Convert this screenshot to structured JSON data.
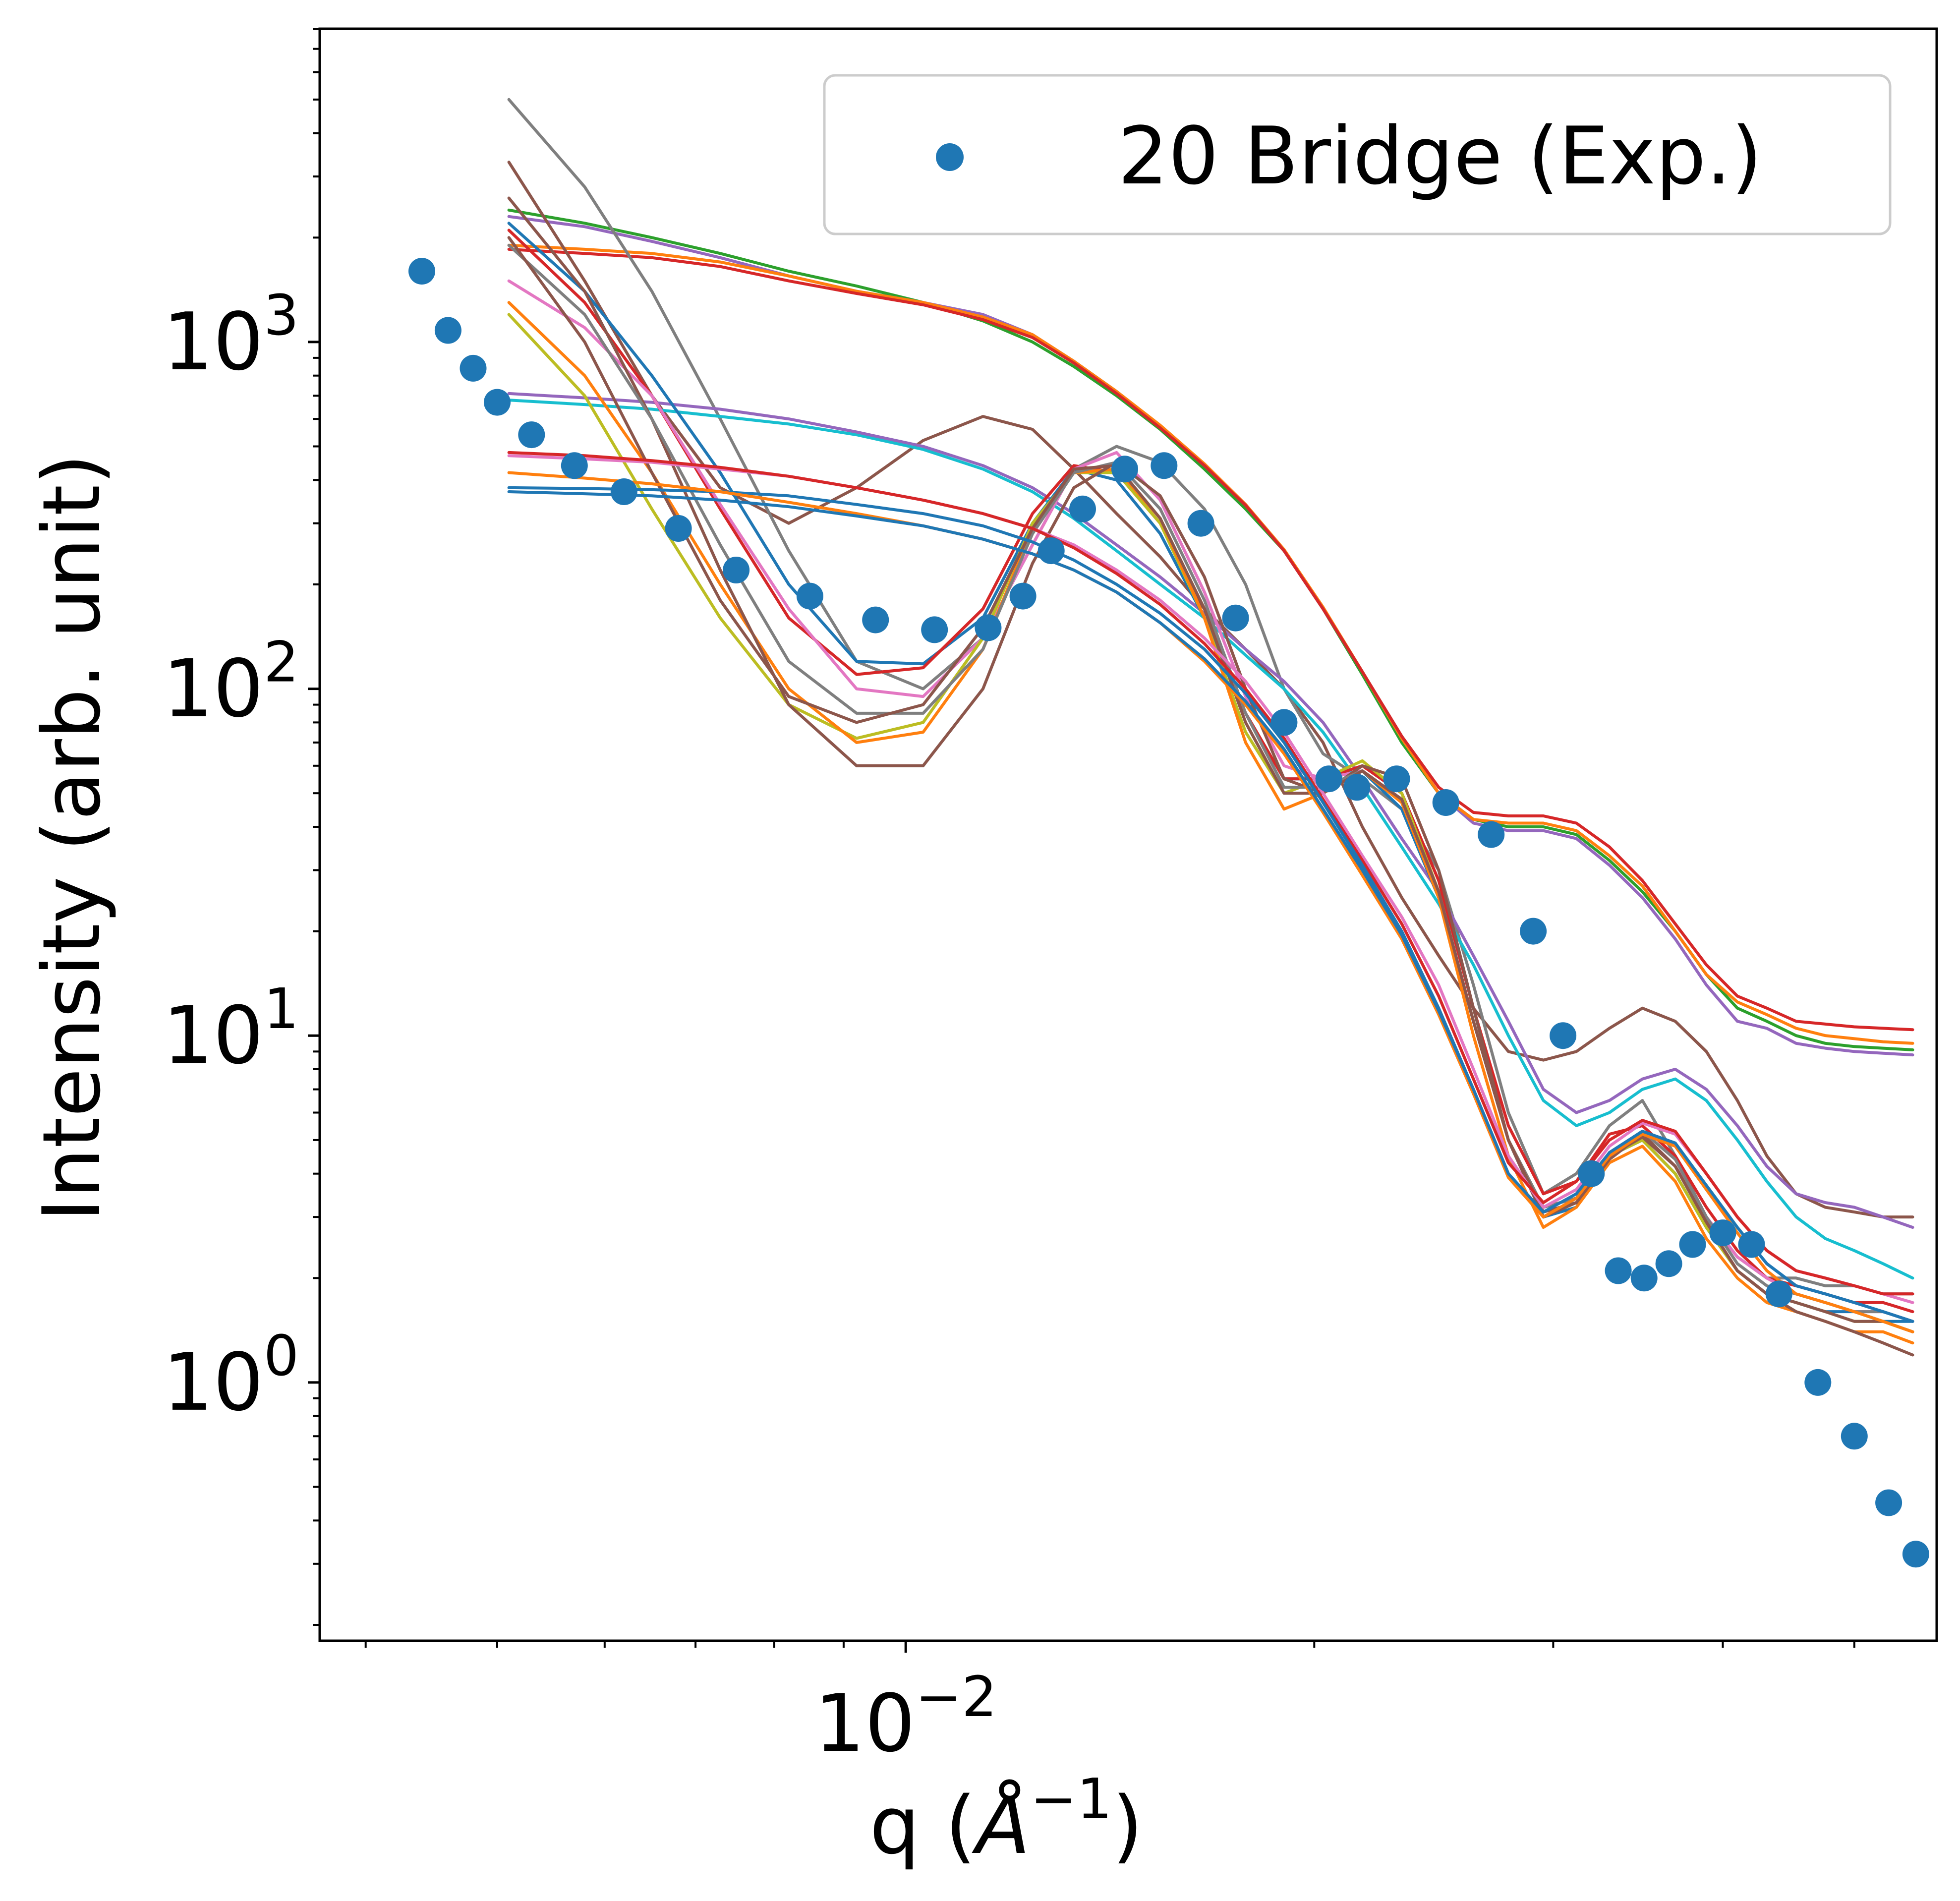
{
  "chart_data": {
    "type": "line",
    "title": "",
    "xlabel_main": "q (",
    "xlabel_unit": "Å",
    "xlabel_exp": "−1",
    "xlabel_close": ")",
    "ylabel": "Intensity (arb. unit)",
    "x_scale": "log",
    "y_scale": "log",
    "xlim": [
      0.0037,
      0.0575
    ],
    "ylim": [
      0.18,
      8000
    ],
    "x_major_ticks": [
      {
        "value": 0.01,
        "base": "10",
        "exp": "−2"
      }
    ],
    "y_major_ticks": [
      {
        "value": 1,
        "base": "10",
        "exp": "0"
      },
      {
        "value": 10,
        "base": "10",
        "exp": "1"
      },
      {
        "value": 100,
        "base": "10",
        "exp": "2"
      },
      {
        "value": 1000,
        "base": "10",
        "exp": "3"
      }
    ],
    "grid": false,
    "legend": {
      "position": "top-right",
      "entries": [
        "20 Bridge (Exp.)"
      ]
    },
    "experimental": {
      "name": "20 Bridge (Exp.)",
      "color": "#1f77b4",
      "x": [
        0.0044,
        0.0046,
        0.0048,
        0.005,
        0.0053,
        0.0057,
        0.0062,
        0.0068,
        0.0075,
        0.0085,
        0.0095,
        0.0105,
        0.0115,
        0.0122,
        0.0128,
        0.0135,
        0.0145,
        0.0155,
        0.0165,
        0.0175,
        0.019,
        0.0205,
        0.0215,
        0.023,
        0.025,
        0.027,
        0.029,
        0.0305,
        0.032,
        0.0335,
        0.035,
        0.0365,
        0.038,
        0.04,
        0.042,
        0.044,
        0.047,
        0.05,
        0.053,
        0.0555
      ],
      "y": [
        1600,
        1080,
        840,
        670,
        540,
        440,
        370,
        290,
        220,
        185,
        158,
        148,
        150,
        185,
        250,
        330,
        430,
        440,
        300,
        160,
        80,
        55,
        52,
        55,
        47,
        38,
        20,
        10,
        4.0,
        2.1,
        2.0,
        2.2,
        2.5,
        2.7,
        2.5,
        1.8,
        1.0,
        0.7,
        0.45,
        0.32
      ]
    },
    "simulation_x": [
      0.0051,
      0.0058,
      0.0065,
      0.0073,
      0.0082,
      0.0092,
      0.0103,
      0.0114,
      0.0124,
      0.0133,
      0.0143,
      0.0154,
      0.0166,
      0.0178,
      0.019,
      0.0203,
      0.0217,
      0.0232,
      0.0247,
      0.0262,
      0.0278,
      0.0295,
      0.0312,
      0.033,
      0.0349,
      0.0369,
      0.0389,
      0.041,
      0.0431,
      0.0453,
      0.0476,
      0.05,
      0.0525,
      0.0552
    ],
    "simulations": [
      {
        "color": "#2ca02c",
        "y": [
          2400,
          2200,
          2000,
          1800,
          1600,
          1450,
          1300,
          1150,
          1000,
          850,
          700,
          560,
          430,
          330,
          250,
          170,
          110,
          70,
          50,
          42,
          40,
          40,
          38,
          32,
          26,
          20,
          15,
          12,
          11,
          10,
          9.5,
          9.3,
          9.2,
          9.1
        ]
      },
      {
        "color": "#9467bd",
        "y": [
          2300,
          2150,
          1950,
          1750,
          1550,
          1400,
          1300,
          1200,
          1050,
          880,
          720,
          570,
          440,
          340,
          250,
          170,
          112,
          72,
          50,
          41,
          39,
          39,
          37,
          31,
          25,
          19,
          14,
          11,
          10.5,
          9.5,
          9.2,
          9.0,
          8.9,
          8.8
        ]
      },
      {
        "color": "#ff7f0e",
        "y": [
          1900,
          1850,
          1800,
          1700,
          1550,
          1400,
          1300,
          1180,
          1050,
          880,
          720,
          575,
          445,
          340,
          252,
          172,
          112,
          72,
          50,
          42,
          41,
          41,
          39,
          33,
          27,
          20,
          15,
          12.5,
          11.5,
          10.5,
          10,
          9.8,
          9.6,
          9.5
        ]
      },
      {
        "color": "#d62728",
        "y": [
          1850,
          1800,
          1750,
          1650,
          1500,
          1380,
          1280,
          1160,
          1030,
          870,
          710,
          565,
          440,
          338,
          250,
          170,
          112,
          73,
          52,
          44,
          43,
          43,
          41,
          35,
          28,
          21,
          16,
          13,
          12,
          11,
          10.8,
          10.6,
          10.5,
          10.4
        ]
      },
      {
        "color": "#8c564b",
        "y": [
          3300,
          1500,
          700,
          380,
          300,
          380,
          520,
          610,
          560,
          430,
          320,
          240,
          170,
          130,
          100,
          70,
          40,
          25,
          17,
          12,
          9,
          8.5,
          9,
          10.5,
          12,
          11,
          9,
          6.5,
          4.5,
          3.5,
          3.2,
          3.1,
          3.0,
          3.0
        ]
      },
      {
        "color": "#7f7f7f",
        "y": [
          5000,
          2800,
          1400,
          600,
          250,
          120,
          100,
          140,
          260,
          430,
          500,
          450,
          330,
          200,
          100,
          65,
          55,
          45,
          30,
          14,
          6,
          3.5,
          4,
          5.5,
          6.5,
          4.5,
          3.0,
          2.3,
          2.0,
          2.0,
          1.9,
          1.9,
          1.8,
          1.8
        ]
      },
      {
        "color": "#17becf",
        "y": [
          680,
          660,
          640,
          610,
          580,
          540,
          490,
          430,
          370,
          310,
          250,
          200,
          160,
          125,
          100,
          75,
          52,
          35,
          24,
          16,
          10,
          6.5,
          5.5,
          6,
          7,
          7.5,
          6.5,
          5,
          3.8,
          3.0,
          2.6,
          2.4,
          2.2,
          2.0
        ]
      },
      {
        "color": "#9467bd",
        "y": [
          710,
          690,
          670,
          640,
          600,
          550,
          500,
          440,
          380,
          320,
          260,
          210,
          165,
          130,
          105,
          80,
          55,
          37,
          26,
          17,
          11,
          7,
          6,
          6.5,
          7.5,
          8,
          7,
          5.5,
          4.2,
          3.5,
          3.3,
          3.2,
          3.0,
          2.8
        ]
      },
      {
        "color": "#1f77b4",
        "y": [
          2200,
          1400,
          800,
          420,
          200,
          120,
          118,
          160,
          300,
          430,
          400,
          280,
          160,
          85,
          55,
          55,
          58,
          45,
          25,
          11,
          5,
          3.0,
          3.2,
          4.5,
          5,
          4,
          2.8,
          2.1,
          1.8,
          1.7,
          1.6,
          1.6,
          1.5,
          1.5
        ]
      },
      {
        "color": "#d62728",
        "y": [
          2100,
          1300,
          700,
          330,
          160,
          110,
          115,
          170,
          320,
          440,
          420,
          300,
          170,
          85,
          55,
          55,
          60,
          50,
          28,
          12,
          5.5,
          3.5,
          3.8,
          5.2,
          5.5,
          4.5,
          3.2,
          2.4,
          2.0,
          1.9,
          1.8,
          1.7,
          1.7,
          1.6
        ]
      },
      {
        "color": "#e377c2",
        "y": [
          1500,
          1100,
          700,
          340,
          170,
          100,
          95,
          140,
          260,
          430,
          480,
          350,
          190,
          95,
          60,
          55,
          58,
          48,
          26,
          11,
          5,
          3.2,
          3.4,
          4.6,
          5.2,
          4.2,
          3.0,
          2.3,
          2.0,
          1.8,
          1.7,
          1.6,
          1.6,
          1.5
        ]
      },
      {
        "color": "#bcbd22",
        "y": [
          1200,
          700,
          330,
          160,
          90,
          72,
          80,
          140,
          300,
          420,
          420,
          300,
          160,
          75,
          50,
          55,
          62,
          50,
          26,
          11,
          5,
          3.2,
          3.4,
          4.5,
          5,
          4,
          2.8,
          2.1,
          1.8,
          1.7,
          1.6,
          1.5,
          1.5,
          1.4
        ]
      },
      {
        "color": "#ff7f0e",
        "y": [
          1300,
          800,
          420,
          200,
          100,
          70,
          75,
          130,
          290,
          420,
          430,
          310,
          160,
          70,
          45,
          50,
          58,
          47,
          25,
          10,
          4.5,
          2.8,
          3.2,
          4.3,
          4.8,
          3.8,
          2.6,
          2.0,
          1.7,
          1.6,
          1.5,
          1.4,
          1.4,
          1.3
        ]
      },
      {
        "color": "#8c564b",
        "y": [
          2600,
          1400,
          600,
          220,
          90,
          60,
          60,
          100,
          230,
          380,
          450,
          360,
          210,
          100,
          55,
          50,
          60,
          55,
          30,
          12,
          5,
          3.0,
          3.3,
          4.4,
          5.2,
          4.2,
          2.9,
          2.1,
          1.8,
          1.6,
          1.5,
          1.4,
          1.3,
          1.2
        ]
      },
      {
        "color": "#7f7f7f",
        "y": [
          1900,
          1200,
          600,
          260,
          120,
          85,
          85,
          130,
          280,
          420,
          450,
          330,
          180,
          85,
          52,
          52,
          58,
          48,
          26,
          11,
          5,
          3.2,
          3.4,
          4.6,
          5.3,
          4.4,
          3.0,
          2.2,
          1.9,
          1.8,
          1.7,
          1.6,
          1.6,
          1.5
        ]
      },
      {
        "color": "#8c564b",
        "y": [
          2000,
          1000,
          420,
          180,
          95,
          80,
          90,
          150,
          290,
          430,
          440,
          310,
          170,
          80,
          50,
          50,
          58,
          48,
          26,
          11,
          5,
          3.1,
          3.3,
          4.5,
          5.1,
          4.2,
          2.9,
          2.1,
          1.8,
          1.7,
          1.6,
          1.5,
          1.5,
          1.4
        ]
      },
      {
        "color": "#e377c2",
        "y": [
          470,
          460,
          450,
          430,
          410,
          380,
          350,
          320,
          290,
          260,
          220,
          180,
          140,
          105,
          75,
          50,
          33,
          22,
          14,
          8,
          4.5,
          3.2,
          3.6,
          4.8,
          5.6,
          5.2,
          4.0,
          3.0,
          2.4,
          2.1,
          2.0,
          1.9,
          1.8,
          1.7
        ]
      },
      {
        "color": "#d62728",
        "y": [
          480,
          470,
          455,
          435,
          410,
          380,
          350,
          320,
          290,
          255,
          215,
          175,
          135,
          100,
          72,
          48,
          32,
          21,
          13,
          7.5,
          4.3,
          3.3,
          3.8,
          5.0,
          5.7,
          5.3,
          4.0,
          3.0,
          2.4,
          2.1,
          2.0,
          1.9,
          1.8,
          1.8
        ]
      },
      {
        "color": "#1f77b4",
        "y": [
          380,
          378,
          375,
          370,
          360,
          340,
          320,
          295,
          265,
          235,
          200,
          165,
          130,
          97,
          70,
          47,
          31,
          20,
          12,
          7,
          4,
          3.0,
          3.4,
          4.6,
          5.3,
          4.9,
          3.7,
          2.8,
          2.2,
          1.9,
          1.8,
          1.7,
          1.6,
          1.5
        ]
      },
      {
        "color": "#ff7f0e",
        "y": [
          420,
          405,
          390,
          370,
          345,
          320,
          295,
          270,
          245,
          220,
          190,
          155,
          120,
          90,
          65,
          44,
          29,
          19,
          11.5,
          6.8,
          3.9,
          3.0,
          3.4,
          4.5,
          5.2,
          4.8,
          3.6,
          2.7,
          2.1,
          1.8,
          1.7,
          1.6,
          1.5,
          1.4
        ]
      },
      {
        "color": "#1f77b4",
        "y": [
          370,
          365,
          360,
          350,
          335,
          315,
          295,
          270,
          245,
          220,
          190,
          155,
          122,
          92,
          67,
          45,
          30,
          19.5,
          11.8,
          7,
          4,
          3.1,
          3.5,
          4.6,
          5.3,
          4.9,
          3.7,
          2.8,
          2.2,
          1.9,
          1.8,
          1.7,
          1.6,
          1.5
        ]
      }
    ]
  }
}
